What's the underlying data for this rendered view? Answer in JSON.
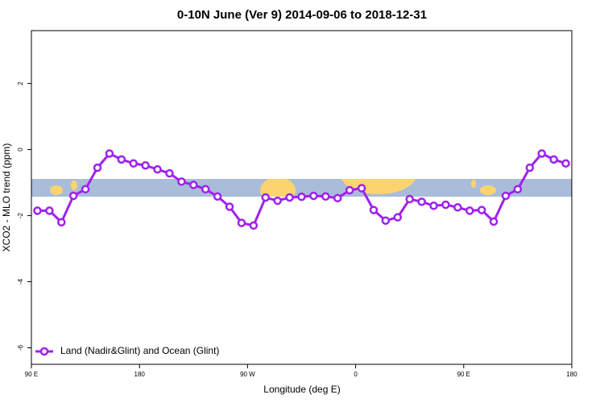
{
  "chart_data": {
    "type": "line",
    "title": "0-10N June (Ver 9)   2014-09-06 to 2018-12-31",
    "x_label": "Longitude (deg E)",
    "y_label": "XCO2 - MLO trend (ppm)",
    "x": [
      95,
      105,
      115,
      125,
      135,
      145,
      155,
      165,
      175,
      185,
      195,
      205,
      215,
      225,
      235,
      245,
      255,
      265,
      275,
      285,
      295,
      305,
      315,
      325,
      335,
      345,
      355,
      365,
      375,
      385,
      395,
      405,
      415,
      425,
      435,
      445,
      455,
      465,
      475,
      485,
      495,
      505,
      515,
      525,
      535
    ],
    "series": [
      {
        "name": "Land (Nadir&Glint) and Ocean (Glint)",
        "color": "#a020f0",
        "values": [
          -1.85,
          -1.85,
          -2.2,
          -1.4,
          -1.2,
          -0.55,
          -0.12,
          -0.3,
          -0.42,
          -0.48,
          -0.6,
          -0.72,
          -0.97,
          -1.07,
          -1.2,
          -1.42,
          -1.73,
          -2.22,
          -2.3,
          -1.45,
          -1.55,
          -1.45,
          -1.43,
          -1.4,
          -1.42,
          -1.47,
          -1.23,
          -1.17,
          -1.83,
          -2.15,
          -2.05,
          -1.5,
          -1.58,
          -1.7,
          -1.67,
          -1.75,
          -1.85,
          -1.83,
          -2.18,
          -1.4,
          -1.2,
          -0.55,
          -0.12,
          -0.3,
          -0.42
        ]
      }
    ],
    "xlim": [
      90,
      540
    ],
    "xticks": [
      {
        "value": 90,
        "label": "90 E"
      },
      180,
      {
        "value": 270,
        "label": "90 W"
      },
      {
        "value": 360,
        "label": "0"
      },
      {
        "value": 450,
        "label": "90 E"
      },
      {
        "value": 540,
        "label": "180"
      }
    ],
    "ylim": [
      -6.5,
      3.6
    ],
    "yticks": [
      -6,
      -4,
      -2,
      0,
      2
    ],
    "legend": "bottom-left"
  }
}
